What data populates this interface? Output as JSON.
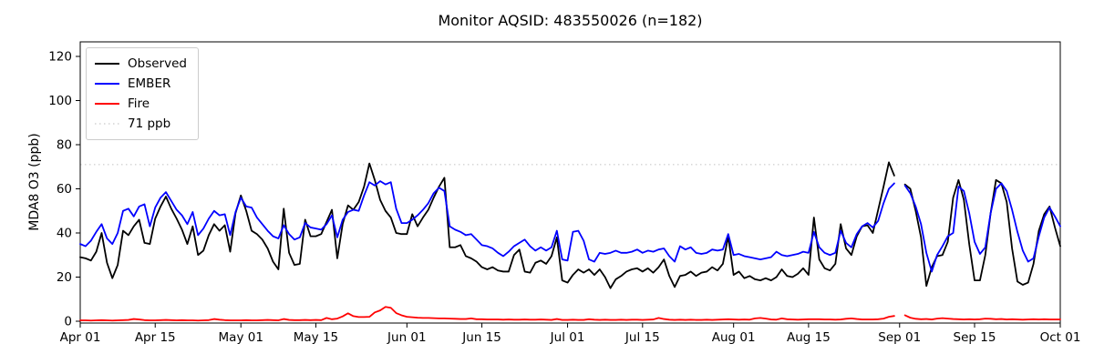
{
  "figure": {
    "title": "Monitor AQSID: 483550026 (n=182)",
    "ylabel": "MDA8 O3 (ppb)",
    "background": "#ffffff",
    "legend": [
      {
        "label": "Observed",
        "color": "#000000",
        "style": "solid"
      },
      {
        "label": "EMBER",
        "color": "#0000ff",
        "style": "solid"
      },
      {
        "label": "Fire",
        "color": "#ff0000",
        "style": "solid"
      },
      {
        "label": "71 ppb",
        "color": "#d3d3d3",
        "style": "dotted"
      }
    ]
  },
  "chart_data": {
    "type": "line",
    "title": "Monitor AQSID: 483550026 (n=182)",
    "monitor_aqsid": "483550026",
    "n_days": 182,
    "xlabel": "",
    "ylabel": "MDA8 O3 (ppb)",
    "ylim": [
      0,
      126
    ],
    "y_ticks": [
      0,
      20,
      40,
      60,
      80,
      100,
      120
    ],
    "x_span_days": 183,
    "x_ticks": [
      {
        "day": 0,
        "label": "Apr 01"
      },
      {
        "day": 14,
        "label": "Apr 15"
      },
      {
        "day": 30,
        "label": "May 01"
      },
      {
        "day": 44,
        "label": "May 15"
      },
      {
        "day": 61,
        "label": "Jun 01"
      },
      {
        "day": 75,
        "label": "Jun 15"
      },
      {
        "day": 91,
        "label": "Jul 01"
      },
      {
        "day": 105,
        "label": "Jul 15"
      },
      {
        "day": 122,
        "label": "Aug 01"
      },
      {
        "day": 136,
        "label": "Aug 15"
      },
      {
        "day": 153,
        "label": "Sep 01"
      },
      {
        "day": 167,
        "label": "Sep 15"
      },
      {
        "day": 183,
        "label": "Oct 01"
      }
    ],
    "threshold": {
      "value": 71,
      "label": "71 ppb",
      "color": "#d3d3d3",
      "style": "dotted"
    },
    "missing_day": {
      "index": 153,
      "date": "Sep 01"
    },
    "legend_position": "upper left",
    "grid": false,
    "series": [
      {
        "name": "Observed",
        "color": "#000000",
        "values": [
          29,
          28.5,
          27.5,
          31.5,
          40,
          26.5,
          19.5,
          25.5,
          41,
          39,
          43,
          46,
          35.5,
          35,
          46.5,
          52,
          56.5,
          51,
          46.5,
          41.5,
          35,
          43,
          30,
          32,
          39,
          44,
          41,
          43.5,
          31.5,
          49,
          57,
          50,
          41,
          39.5,
          37,
          33,
          27,
          23.5,
          51,
          31,
          25.5,
          26,
          46,
          38.5,
          38.5,
          39.5,
          45,
          50.5,
          28.5,
          44,
          52.5,
          50.5,
          54,
          61,
          71.5,
          64,
          55,
          50,
          47,
          40,
          39.5,
          39.5,
          48.5,
          43,
          47,
          50.5,
          56,
          61,
          65,
          33.5,
          33.5,
          34.5,
          29.5,
          28.5,
          27,
          24.5,
          23.5,
          24.5,
          23,
          22.5,
          22.5,
          30,
          32.5,
          22.5,
          22,
          26.5,
          27.5,
          26,
          29.5,
          38,
          18.5,
          17.5,
          21,
          23.5,
          22,
          23.5,
          21,
          23.5,
          20,
          15,
          19,
          20.5,
          22.5,
          23.5,
          24,
          22.5,
          24,
          22,
          24.5,
          28,
          20.5,
          15.5,
          20.5,
          21,
          22.5,
          20.5,
          22,
          22.5,
          24.5,
          23,
          26,
          38.5,
          21,
          22.5,
          19.5,
          20.5,
          19,
          18.5,
          19.5,
          18.5,
          20,
          23.5,
          20.5,
          20,
          21.5,
          24,
          21,
          47,
          28,
          24,
          23,
          26,
          44,
          33,
          30,
          38.5,
          43,
          43.5,
          40,
          50.5,
          61,
          72,
          66,
          null,
          62,
          60,
          50,
          38,
          16,
          24.5,
          29.5,
          30,
          36,
          56,
          64,
          55,
          35,
          18.5,
          18.5,
          30,
          49,
          64,
          62.5,
          54,
          33,
          18,
          16.5,
          17.5,
          26,
          41,
          48.5,
          52,
          42.5,
          34
        ]
      },
      {
        "name": "EMBER",
        "color": "#0000ff",
        "values": [
          35,
          34,
          36.5,
          40.5,
          44,
          37.5,
          35,
          40,
          50,
          51,
          47.5,
          52,
          53,
          43,
          51.5,
          56,
          58.5,
          54.5,
          50.5,
          48,
          44,
          49.5,
          39,
          42,
          46.5,
          50,
          48,
          48.5,
          39,
          49.5,
          56,
          52,
          51.5,
          47,
          44,
          41,
          38.5,
          37.5,
          43.5,
          39.5,
          37,
          38,
          44.5,
          42.5,
          42,
          41.5,
          44,
          48,
          38,
          46,
          49.5,
          50.5,
          50,
          57,
          63,
          61.5,
          63.5,
          62,
          63,
          51,
          44.5,
          44.5,
          46,
          48,
          50.5,
          53.5,
          58,
          60.5,
          59,
          43,
          41.5,
          40.5,
          39,
          39.5,
          37,
          34.5,
          34,
          33,
          31,
          29.5,
          31.5,
          34,
          35.5,
          37,
          34,
          32,
          33.5,
          32,
          33.5,
          41,
          28,
          27.5,
          40.5,
          41,
          36.5,
          28,
          27,
          31,
          30.5,
          31,
          32,
          31,
          31,
          31.5,
          32.5,
          31,
          32,
          31.5,
          32.5,
          33,
          29.5,
          27,
          34,
          32.5,
          33.5,
          31,
          30.5,
          31,
          32.5,
          32,
          32.5,
          39.5,
          30,
          30.5,
          29.5,
          29,
          28.5,
          28,
          28.5,
          29,
          31.5,
          30,
          29.5,
          30,
          30.5,
          31.5,
          31,
          40.5,
          33.5,
          31,
          30,
          31,
          41,
          35.5,
          33.5,
          39.5,
          43,
          44.5,
          42.5,
          45.5,
          53.5,
          60,
          62.5,
          null,
          61.5,
          58,
          52,
          44,
          31,
          22.5,
          30,
          34,
          38.5,
          40,
          61,
          59,
          49,
          36,
          30.5,
          33.5,
          49,
          60,
          62.5,
          59,
          50.5,
          40.5,
          32,
          27,
          28.5,
          38.5,
          47,
          51.5,
          47.5,
          43
        ]
      },
      {
        "name": "Fire",
        "color": "#ff0000",
        "values": [
          0.4,
          0.4,
          0.3,
          0.4,
          0.5,
          0.4,
          0.3,
          0.4,
          0.5,
          0.6,
          1,
          0.8,
          0.5,
          0.4,
          0.4,
          0.5,
          0.6,
          0.5,
          0.4,
          0.5,
          0.4,
          0.4,
          0.3,
          0.4,
          0.5,
          1,
          0.7,
          0.5,
          0.4,
          0.4,
          0.4,
          0.5,
          0.4,
          0.4,
          0.5,
          0.6,
          0.5,
          0.4,
          1,
          0.6,
          0.5,
          0.5,
          0.6,
          0.5,
          0.6,
          0.5,
          1.5,
          0.9,
          1.2,
          2.2,
          3.6,
          2.3,
          1.9,
          1.9,
          2,
          4,
          4.9,
          6.5,
          6.1,
          3.7,
          2.7,
          2,
          1.8,
          1.6,
          1.5,
          1.5,
          1.4,
          1.3,
          1.3,
          1.2,
          1.1,
          1,
          1,
          1.3,
          0.9,
          0.9,
          0.8,
          0.8,
          0.8,
          0.7,
          0.8,
          0.7,
          0.7,
          0.8,
          0.7,
          0.7,
          0.8,
          0.7,
          0.6,
          1,
          0.6,
          0.6,
          0.7,
          0.6,
          0.6,
          0.9,
          0.7,
          0.6,
          0.7,
          0.6,
          0.6,
          0.7,
          0.6,
          0.7,
          0.7,
          0.6,
          0.7,
          0.8,
          1.5,
          1,
          0.7,
          0.6,
          0.7,
          0.6,
          0.7,
          0.6,
          0.6,
          0.7,
          0.6,
          0.7,
          0.8,
          0.9,
          0.8,
          0.7,
          0.8,
          0.7,
          1.3,
          1.5,
          1.2,
          0.8,
          0.7,
          1.3,
          0.9,
          0.8,
          0.7,
          0.8,
          0.9,
          0.9,
          0.9,
          0.8,
          0.8,
          0.7,
          0.8,
          1.1,
          1.3,
          1,
          0.8,
          0.8,
          0.8,
          0.9,
          1.2,
          2,
          2.4,
          null,
          2.7,
          1.6,
          1.1,
          0.9,
          1,
          0.8,
          1.2,
          1.4,
          1.2,
          1,
          0.9,
          0.8,
          0.9,
          0.8,
          0.9,
          1.2,
          1.1,
          0.9,
          1,
          0.8,
          0.9,
          0.8,
          0.7,
          0.8,
          0.9,
          0.8,
          0.9,
          0.8,
          0.8,
          0.8
        ]
      }
    ]
  }
}
